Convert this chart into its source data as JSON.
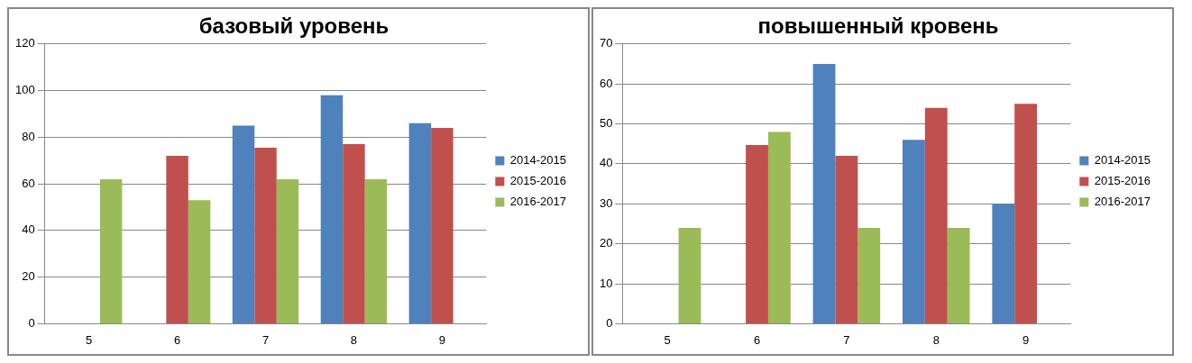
{
  "chart_data": [
    {
      "type": "bar",
      "title": "базовый уровень",
      "categories": [
        "5",
        "6",
        "7",
        "8",
        "9"
      ],
      "series": [
        {
          "name": "2014-2015",
          "color": "#4f81bd",
          "values": [
            null,
            null,
            85,
            98,
            86
          ]
        },
        {
          "name": "2015-2016",
          "color": "#c0504d",
          "values": [
            null,
            72,
            75.5,
            77,
            84
          ]
        },
        {
          "name": "2016-2017",
          "color": "#9bbb59",
          "values": [
            62,
            53,
            62,
            62,
            null
          ]
        }
      ],
      "ylim": [
        0,
        120
      ],
      "yticks": [
        0,
        20,
        40,
        60,
        80,
        100,
        120
      ],
      "grid": "y",
      "legend": "right"
    },
    {
      "type": "bar",
      "title": "повышенный кровень",
      "categories": [
        "5",
        "6",
        "7",
        "8",
        "9"
      ],
      "series": [
        {
          "name": "2014-2015",
          "color": "#4f81bd",
          "values": [
            null,
            null,
            65,
            46,
            30
          ]
        },
        {
          "name": "2015-2016",
          "color": "#c0504d",
          "values": [
            null,
            44.7,
            42,
            54,
            55
          ]
        },
        {
          "name": "2016-2017",
          "color": "#9bbb59",
          "values": [
            24,
            48,
            24,
            24,
            null
          ]
        }
      ],
      "ylim": [
        0,
        70
      ],
      "yticks": [
        0,
        10,
        20,
        30,
        40,
        50,
        60,
        70
      ],
      "grid": "y",
      "legend": "right"
    }
  ]
}
